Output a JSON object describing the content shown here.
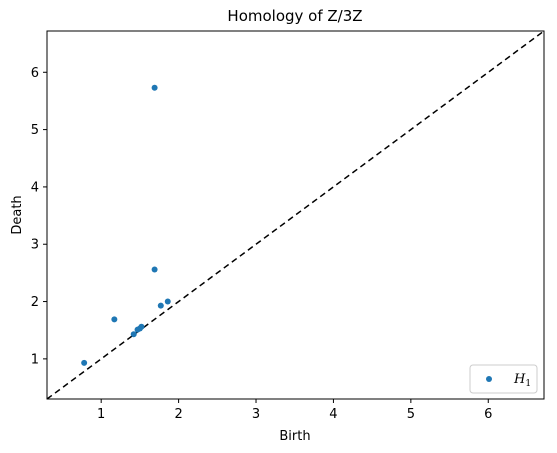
{
  "chart_data": {
    "type": "scatter",
    "title": "Homology of Z/3Z",
    "xlabel": "Birth",
    "ylabel": "Death",
    "xlim": [
      0.3,
      6.72
    ],
    "ylim": [
      0.3,
      6.72
    ],
    "xticks": [
      1,
      2,
      3,
      4,
      5,
      6
    ],
    "yticks": [
      1,
      2,
      3,
      4,
      5,
      6
    ],
    "grid": false,
    "legend_position": "lower-right",
    "diagonal": {
      "style": "dashed",
      "color": "#000000"
    },
    "series": [
      {
        "name": "H",
        "name_subscript": "1",
        "color": "#1f77b4",
        "points": [
          {
            "x": 0.78,
            "y": 0.93
          },
          {
            "x": 1.17,
            "y": 1.69
          },
          {
            "x": 1.42,
            "y": 1.43
          },
          {
            "x": 1.47,
            "y": 1.51
          },
          {
            "x": 1.5,
            "y": 1.53
          },
          {
            "x": 1.52,
            "y": 1.56
          },
          {
            "x": 1.69,
            "y": 5.73
          },
          {
            "x": 1.69,
            "y": 2.56
          },
          {
            "x": 1.77,
            "y": 1.93
          },
          {
            "x": 1.86,
            "y": 2.0
          }
        ]
      }
    ]
  }
}
